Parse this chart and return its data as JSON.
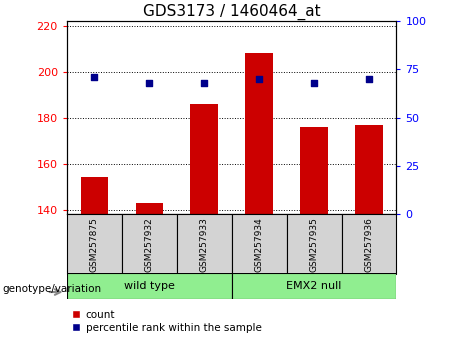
{
  "title": "GDS3173 / 1460464_at",
  "samples": [
    "GSM257875",
    "GSM257932",
    "GSM257933",
    "GSM257934",
    "GSM257935",
    "GSM257936"
  ],
  "bar_values": [
    154,
    143,
    186,
    208,
    176,
    177
  ],
  "percentile_values": [
    71,
    68,
    68,
    70,
    68,
    70
  ],
  "ylim_left": [
    138,
    222
  ],
  "ylim_right": [
    0,
    100
  ],
  "yticks_left": [
    140,
    160,
    180,
    200,
    220
  ],
  "yticks_right": [
    0,
    25,
    50,
    75,
    100
  ],
  "bar_color": "#cc0000",
  "scatter_color": "#00008b",
  "bar_width": 0.5,
  "legend_count_label": "count",
  "legend_percentile_label": "percentile rank within the sample",
  "genotype_label": "genotype/variation",
  "title_fontsize": 11,
  "tick_fontsize": 8,
  "sample_fontsize": 6.5,
  "group_fontsize": 8,
  "legend_fontsize": 7.5,
  "wt_color": "#90EE90",
  "emx_color": "#90EE90",
  "sample_bg_color": "#d3d3d3"
}
